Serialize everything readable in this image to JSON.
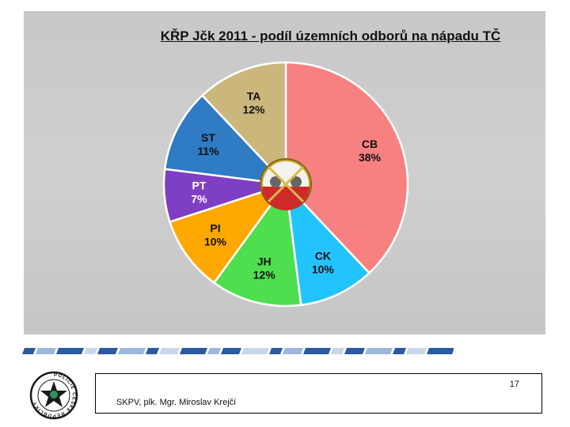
{
  "chart_data": {
    "type": "pie",
    "title": "KŘP Jčk 2011 - podíl územních odborů na nápadu TČ",
    "slices": [
      {
        "label": "CB",
        "value": 38,
        "display": "38%",
        "color": "#f78080"
      },
      {
        "label": "CK",
        "value": 10,
        "display": "10%",
        "color": "#22c4ff"
      },
      {
        "label": "JH",
        "value": 12,
        "display": "12%",
        "color": "#4ede4e"
      },
      {
        "label": "PI",
        "value": 10,
        "display": "10%",
        "color": "#ffa800"
      },
      {
        "label": "PT",
        "value": 7,
        "display": "7%",
        "color": "#7f3fc5"
      },
      {
        "label": "ST",
        "value": 11,
        "display": "11%",
        "color": "#2f7bc4"
      },
      {
        "label": "TA",
        "value": 12,
        "display": "12%",
        "color": "#cbb67c"
      }
    ],
    "start": "12 o'clock",
    "direction": "clockwise"
  },
  "footer": {
    "page_number": "17",
    "author": "SKPV, plk. Mgr. Miroslav Krejčí"
  },
  "badge": {
    "text": "POLICIE ČESKÉ REPUBLIKY",
    "star_color": "#1a1a1a",
    "center_color": "#2f8f5f"
  }
}
